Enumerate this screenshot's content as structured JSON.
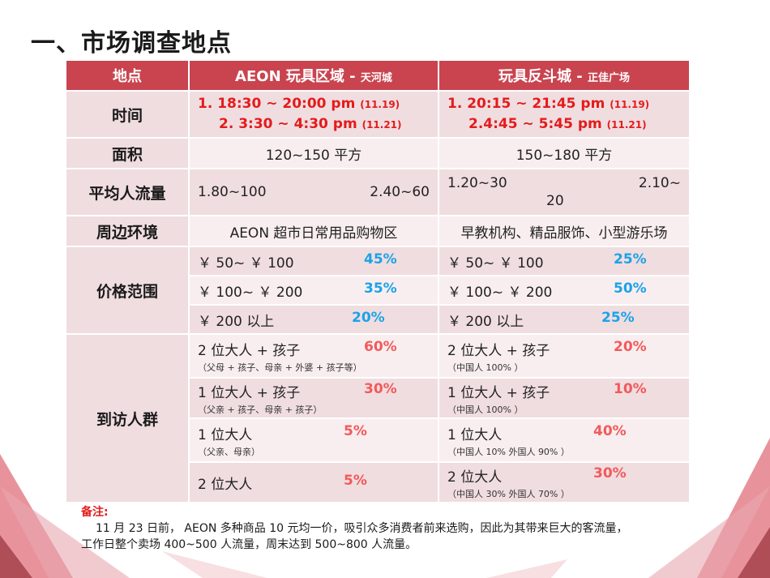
{
  "title": "一、市场调查地点",
  "table": {
    "headers": {
      "col0": "地点",
      "col1_main": "AEON 玩具区域 - ",
      "col1_sub": "天河城",
      "col2_main": "玩具反斗城 - ",
      "col2_sub": "正佳广场"
    },
    "time": {
      "label": "时间",
      "aeon_l1": "1. 18:30 ~ 20:00 pm ",
      "aeon_l1_date": "(11.19)",
      "aeon_l2": "2. 3:30 ~ 4:30 pm ",
      "aeon_l2_date": "(11.21)",
      "toys_l1": "1. 20:15 ~ 21:45 pm ",
      "toys_l1_date": "(11.19)",
      "toys_l2": "2.4:45 ~ 5:45 pm ",
      "toys_l2_date": "(11.21)"
    },
    "area": {
      "label": "面积",
      "aeon": "120~150 平方",
      "toys": "150~180 平方"
    },
    "traffic": {
      "label": "平均人流量",
      "aeon_a": "1.80~100",
      "aeon_b": "2.40~60",
      "toys_a": "1.20~30",
      "toys_b": "2.10~",
      "toys_c": "20"
    },
    "surroundings": {
      "label": "周边环境",
      "aeon": "AEON 超市日常用品购物区",
      "toys": "早教机构、精品服饰、小型游乐场"
    },
    "price": {
      "label": "价格范围",
      "rows": [
        {
          "range": "￥ 50~ ￥ 100",
          "aeon_pct": "45%",
          "toys_pct": "25%"
        },
        {
          "range": "￥ 100~ ￥ 200",
          "aeon_pct": "35%",
          "toys_pct": "50%"
        },
        {
          "range": "￥ 200 以上",
          "aeon_pct": "20%",
          "toys_pct": "25%"
        }
      ]
    },
    "visitors": {
      "label": "到访人群",
      "rows": [
        {
          "aeon_group": "2 位大人 + 孩子",
          "aeon_pct": "60%",
          "aeon_note": "（父母 + 孩子、母亲 + 外婆 + 孩子等）",
          "toys_group": "2 位大人 + 孩子",
          "toys_pct": "20%",
          "toys_note": "（中国人 100% ）"
        },
        {
          "aeon_group": "1 位大人 + 孩子",
          "aeon_pct": "30%",
          "aeon_note": "（父亲 + 孩子、母亲 + 孩子）",
          "toys_group": "1 位大人 + 孩子",
          "toys_pct": "10%",
          "toys_note": "（中国人 100% ）"
        },
        {
          "aeon_group": "1 位大人",
          "aeon_pct": "5%",
          "aeon_note": "（父亲、母亲）",
          "toys_group": "1 位大人",
          "toys_pct": "40%",
          "toys_note": "（中国人 10%   外国人 90% ）"
        },
        {
          "aeon_group": "2 位大人",
          "aeon_pct": "5%",
          "aeon_note": "",
          "toys_group": "2 位大人",
          "toys_pct": "30%",
          "toys_note": "（中国人 30%   外国人 70% ）"
        }
      ]
    }
  },
  "notes": {
    "heading": "备注:",
    "line1": "11 月 23 日前， AEON 多种商品 10 元均一价，吸引众多消费者前来选购，因此为其带来巨大的客流量，",
    "line2": "工作日整个卖场 400~500 人流量，周末达到 500~800 人流量。"
  },
  "colors": {
    "header_bg": "#c9444f",
    "label_bg": "#f0dde0",
    "time_red": "#e41b1b",
    "pct_blue": "#1aa3e8",
    "pct_red": "#f25a5a"
  }
}
